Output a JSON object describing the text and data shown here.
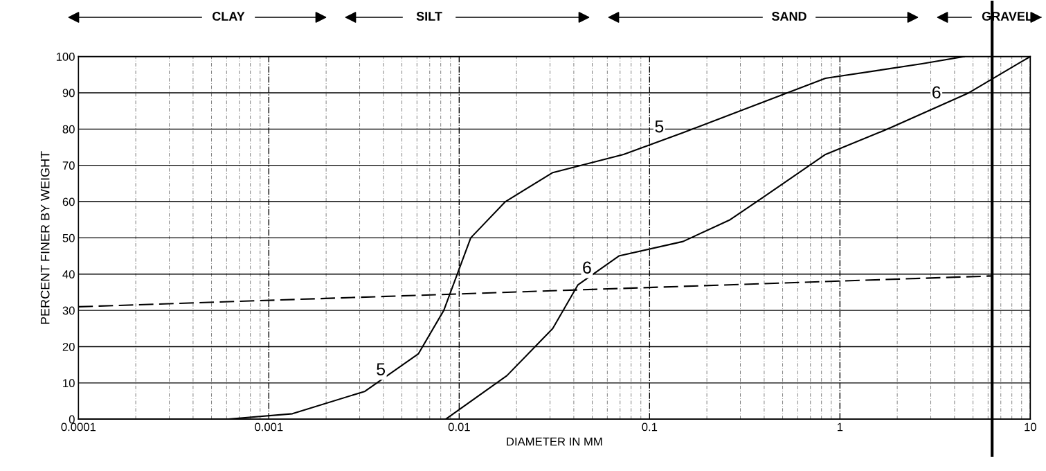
{
  "chart_data": {
    "type": "line",
    "xlabel": "DIAMETER IN MM",
    "ylabel": "PERCENT FINER BY WEIGHT",
    "log": "x",
    "xlim": [
      0.0001,
      10
    ],
    "xticks": [
      0.0001,
      0.001,
      0.01,
      0.1,
      1,
      10
    ],
    "ylim": [
      0,
      100
    ],
    "yticks": [
      0,
      10,
      20,
      30,
      40,
      50,
      60,
      70,
      80,
      90,
      100
    ],
    "grid": true,
    "legend": false,
    "series": [
      {
        "name": "5",
        "color": "#000000",
        "x": [
          0.0001,
          0.0006,
          0.00133,
          0.0032,
          0.0061,
          0.0083,
          0.0115,
          0.0175,
          0.031,
          0.073,
          0.15,
          0.84,
          2.7,
          4.5
        ],
        "values": [
          0,
          0,
          1.5,
          7.7,
          18,
          30,
          50,
          60,
          68,
          73,
          79,
          94,
          98,
          100
        ]
      },
      {
        "name": "6",
        "color": "#000000",
        "x": [
          0.0085,
          0.0178,
          0.031,
          0.042,
          0.069,
          0.15,
          0.265,
          0.39,
          0.84,
          1.78,
          4.76,
          8.6,
          10
        ],
        "values": [
          0,
          12,
          25,
          37,
          45,
          49,
          55,
          61,
          73,
          80,
          90,
          98,
          100
        ]
      },
      {
        "color": "#000000",
        "line_style": "dashed",
        "x": [
          0.0001,
          6.3
        ],
        "values": [
          31,
          39.5
        ]
      }
    ],
    "ref_lines": [
      {
        "axis": "x",
        "value": 6.3,
        "color": "#000000"
      }
    ],
    "annotations": [
      "CLAY",
      "SILT",
      "SAND",
      "GRAVEL"
    ]
  }
}
